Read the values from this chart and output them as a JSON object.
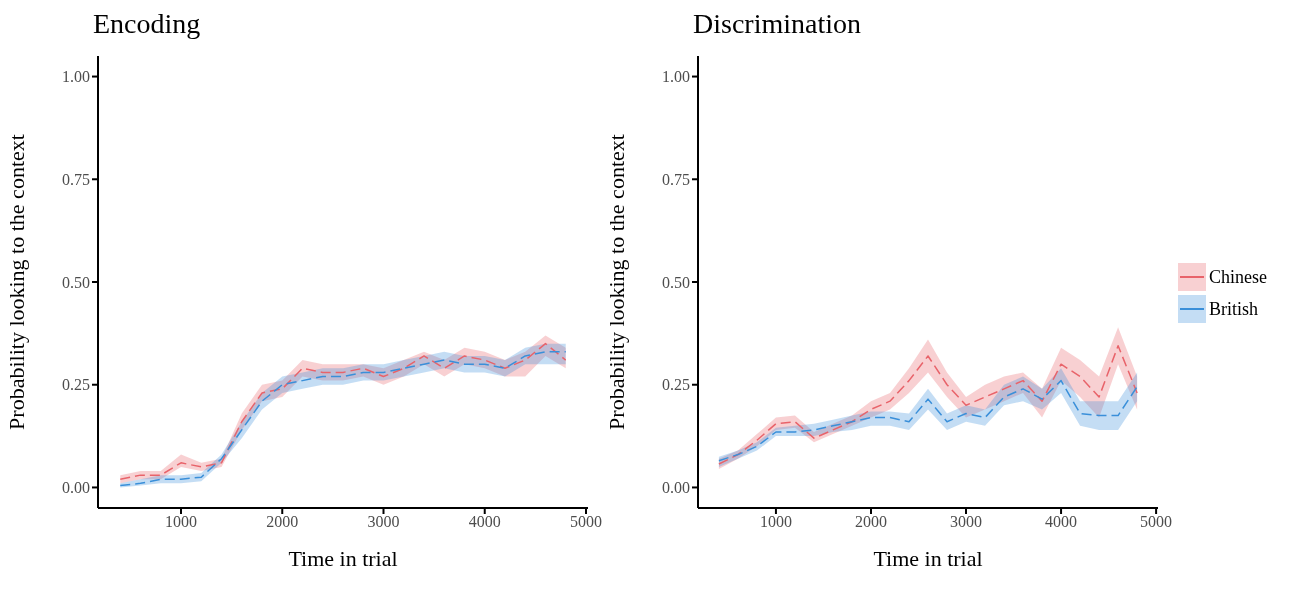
{
  "chart_data": [
    {
      "type": "line",
      "title": "Encoding",
      "xlabel": "Time in trial",
      "ylabel": "Probability looking to the context",
      "x": [
        400,
        600,
        800,
        1000,
        1200,
        1400,
        1600,
        1800,
        2000,
        2200,
        2400,
        2600,
        2800,
        3000,
        3200,
        3400,
        3600,
        3800,
        4000,
        4200,
        4400,
        4600,
        4800
      ],
      "xlim": [
        180,
        5020
      ],
      "xticks": [
        1000,
        2000,
        3000,
        4000,
        5000
      ],
      "ylim": [
        -0.05,
        1.05
      ],
      "yticks": [
        {
          "value": 0,
          "label": "0.00"
        },
        {
          "value": 0.25,
          "label": "0.25"
        },
        {
          "value": 0.5,
          "label": "0.50"
        },
        {
          "value": 0.75,
          "label": "0.75"
        },
        {
          "value": 1,
          "label": "1.00"
        }
      ],
      "grid": false,
      "line_style": "dashed",
      "legend": false,
      "series": [
        {
          "color": "#e8636a",
          "values": [
            0.02,
            0.03,
            0.03,
            0.06,
            0.05,
            0.06,
            0.16,
            0.23,
            0.24,
            0.29,
            0.28,
            0.28,
            0.29,
            0.27,
            0.29,
            0.32,
            0.29,
            0.32,
            0.31,
            0.29,
            0.31,
            0.35,
            0.31
          ],
          "lower": [
            0.01,
            0.02,
            0.02,
            0.05,
            0.04,
            0.05,
            0.14,
            0.21,
            0.22,
            0.27,
            0.26,
            0.26,
            0.27,
            0.25,
            0.27,
            0.3,
            0.27,
            0.3,
            0.29,
            0.27,
            0.27,
            0.32,
            0.29
          ],
          "upper": [
            0.03,
            0.04,
            0.04,
            0.08,
            0.06,
            0.07,
            0.18,
            0.25,
            0.26,
            0.31,
            0.3,
            0.3,
            0.3,
            0.29,
            0.31,
            0.33,
            0.31,
            0.34,
            0.33,
            0.31,
            0.33,
            0.37,
            0.34
          ]
        },
        {
          "color": "#3a8fd9",
          "values": [
            0.005,
            0.01,
            0.02,
            0.02,
            0.025,
            0.07,
            0.14,
            0.21,
            0.25,
            0.26,
            0.27,
            0.27,
            0.28,
            0.28,
            0.29,
            0.3,
            0.31,
            0.3,
            0.3,
            0.29,
            0.32,
            0.33,
            0.33
          ],
          "lower": [
            0,
            0.005,
            0.01,
            0.01,
            0.015,
            0.06,
            0.12,
            0.19,
            0.23,
            0.24,
            0.25,
            0.25,
            0.26,
            0.26,
            0.27,
            0.28,
            0.29,
            0.28,
            0.28,
            0.27,
            0.3,
            0.3,
            0.3
          ],
          "upper": [
            0.01,
            0.02,
            0.03,
            0.03,
            0.035,
            0.08,
            0.16,
            0.23,
            0.27,
            0.28,
            0.29,
            0.29,
            0.3,
            0.3,
            0.31,
            0.32,
            0.33,
            0.32,
            0.32,
            0.31,
            0.34,
            0.35,
            0.35
          ]
        }
      ]
    },
    {
      "type": "line",
      "title": "Discrimination",
      "xlabel": "Time in trial",
      "ylabel": "Probability looking to the context",
      "x": [
        400,
        600,
        800,
        1000,
        1200,
        1400,
        1600,
        1800,
        2000,
        2200,
        2400,
        2600,
        2800,
        3000,
        3200,
        3400,
        3600,
        3800,
        4000,
        4200,
        4400,
        4600,
        4800
      ],
      "xlim": [
        180,
        5020
      ],
      "xticks": [
        1000,
        2000,
        3000,
        4000,
        5000
      ],
      "ylim": [
        -0.05,
        1.05
      ],
      "yticks": [
        {
          "value": 0,
          "label": "0.00"
        },
        {
          "value": 0.25,
          "label": "0.25"
        },
        {
          "value": 0.5,
          "label": "0.50"
        },
        {
          "value": 0.75,
          "label": "0.75"
        },
        {
          "value": 1,
          "label": "1.00"
        }
      ],
      "grid": false,
      "line_style": "dashed",
      "legend": "right",
      "series": [
        {
          "name": "Chinese",
          "color": "#e8636a",
          "values": [
            0.057,
            0.08,
            0.115,
            0.155,
            0.16,
            0.12,
            0.14,
            0.16,
            0.19,
            0.21,
            0.26,
            0.32,
            0.25,
            0.2,
            0.22,
            0.24,
            0.26,
            0.21,
            0.3,
            0.27,
            0.22,
            0.345,
            0.23
          ],
          "lower": [
            0.045,
            0.07,
            0.1,
            0.14,
            0.145,
            0.11,
            0.13,
            0.15,
            0.17,
            0.19,
            0.23,
            0.28,
            0.22,
            0.17,
            0.19,
            0.21,
            0.23,
            0.17,
            0.26,
            0.22,
            0.17,
            0.3,
            0.19
          ],
          "upper": [
            0.07,
            0.09,
            0.13,
            0.17,
            0.175,
            0.135,
            0.155,
            0.175,
            0.21,
            0.23,
            0.29,
            0.36,
            0.28,
            0.22,
            0.25,
            0.27,
            0.28,
            0.24,
            0.34,
            0.31,
            0.27,
            0.39,
            0.27
          ]
        },
        {
          "name": "British",
          "color": "#3a8fd9",
          "values": [
            0.065,
            0.08,
            0.1,
            0.135,
            0.135,
            0.14,
            0.15,
            0.16,
            0.17,
            0.17,
            0.16,
            0.215,
            0.16,
            0.18,
            0.17,
            0.22,
            0.24,
            0.215,
            0.26,
            0.18,
            0.175,
            0.175,
            0.245
          ],
          "lower": [
            0.05,
            0.07,
            0.09,
            0.125,
            0.125,
            0.125,
            0.135,
            0.14,
            0.15,
            0.15,
            0.14,
            0.19,
            0.14,
            0.16,
            0.15,
            0.2,
            0.21,
            0.19,
            0.23,
            0.15,
            0.14,
            0.14,
            0.21
          ],
          "upper": [
            0.075,
            0.09,
            0.11,
            0.145,
            0.15,
            0.155,
            0.165,
            0.175,
            0.185,
            0.185,
            0.18,
            0.24,
            0.18,
            0.2,
            0.19,
            0.25,
            0.27,
            0.24,
            0.29,
            0.21,
            0.21,
            0.21,
            0.28
          ]
        }
      ]
    }
  ]
}
